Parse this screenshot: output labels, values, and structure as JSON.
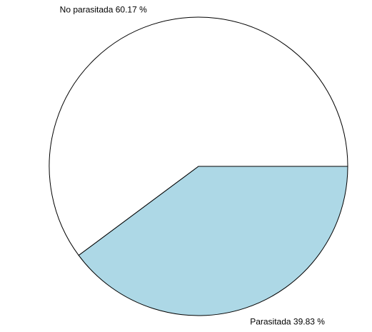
{
  "chart_data": {
    "type": "pie",
    "categories": [
      "No parasitada",
      "Parasitada"
    ],
    "values": [
      60.17,
      39.83
    ],
    "value_labels": [
      "60.17  %",
      "39.83  %"
    ],
    "colors": [
      "#ffffff",
      "#add8e6"
    ],
    "clockwise": false
  }
}
